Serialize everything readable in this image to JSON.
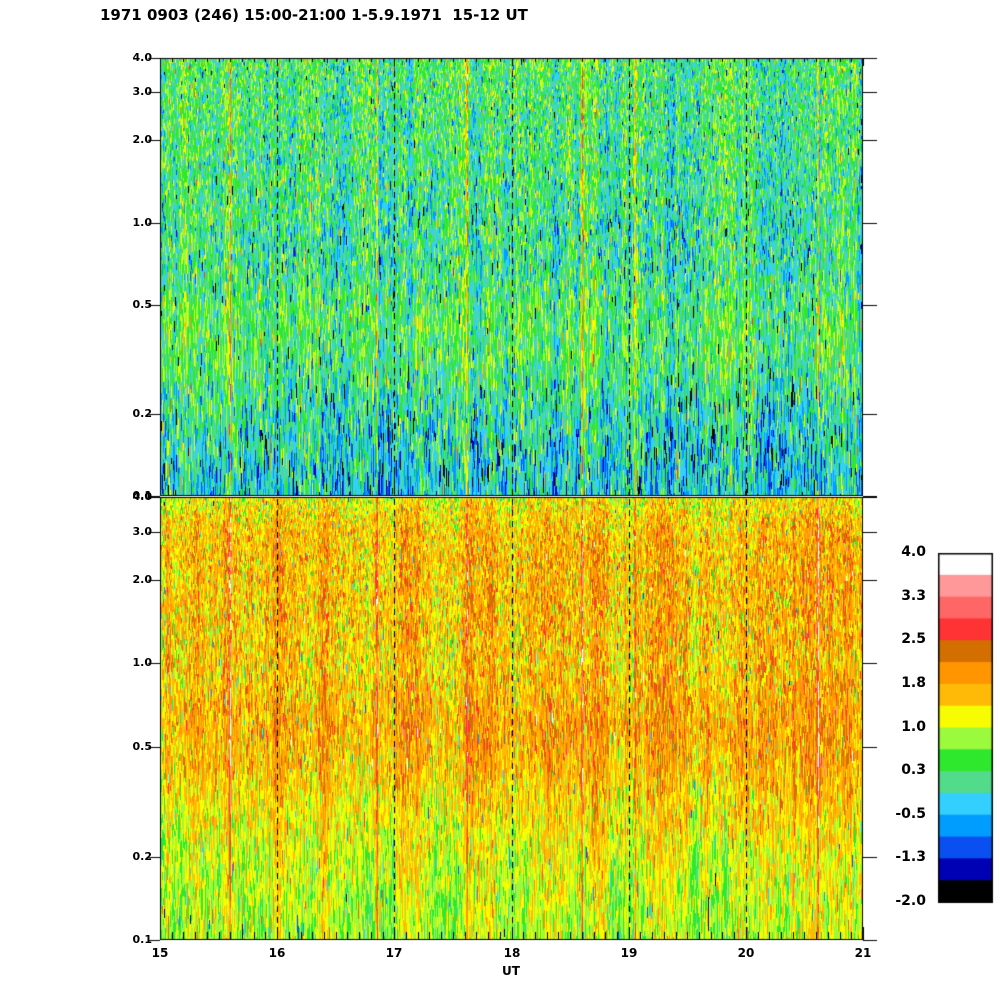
{
  "title": "1971 0903 (246) 15:00-21:00 1-5.9.1971  15-12 UT",
  "x_axis": {
    "label": "UT",
    "tick_labels": [
      "15",
      "16",
      "17",
      "18",
      "19",
      "20",
      "21"
    ]
  },
  "chart_data": {
    "type": "heatmap",
    "title": "1971 0903 (246) 15:00-21:00 1-5.9.1971  15-12 UT",
    "xlabel": "UT",
    "x_range_ut_hours": [
      15,
      21
    ],
    "x_major_ticks": [
      15,
      16,
      17,
      18,
      19,
      20,
      21
    ],
    "x_minor_tick_step_hours": 0.1,
    "dashed_gridlines_ut": [
      16,
      17,
      18,
      19,
      20
    ],
    "y_scale": "log",
    "y_range": [
      0.1,
      4.0
    ],
    "y_ticks": [
      {
        "value": 4.0,
        "label": "4.0"
      },
      {
        "value": 3.0,
        "label": "3.0"
      },
      {
        "value": 2.0,
        "label": "2.0"
      },
      {
        "value": 1.0,
        "label": "1.0"
      },
      {
        "value": 0.5,
        "label": "0.5"
      },
      {
        "value": 0.2,
        "label": "0.2"
      },
      {
        "value": 0.1,
        "label": "0.1"
      }
    ],
    "colorbar": {
      "min": -2.0,
      "max": 4.0,
      "labels": [
        "4.0",
        "3.3",
        "2.5",
        "1.8",
        "1.0",
        "0.3",
        "-0.5",
        "-1.3",
        "-2.0"
      ],
      "band_colors_top_to_bottom": [
        "#FFFFFF",
        "#FF9999",
        "#FF6666",
        "#FF3333",
        "#D26F00",
        "#FF9500",
        "#FFBA08",
        "#F8FC00",
        "#9BFA3C",
        "#2EE82E",
        "#52DB8A",
        "#33CFFF",
        "#009DFF",
        "#0A50F0",
        "#0000B4",
        "#000000"
      ]
    },
    "panels": [
      {
        "name": "upper-spectrogram",
        "description": "Green/cyan dominated dynamic spectrum; green band near 0.3-0.5, cyan and dark-blue streaks below 0.2",
        "profile_freq_mean_sigma": [
          [
            4.0,
            0.28,
            0.45
          ],
          [
            2.5,
            0.22,
            0.45
          ],
          [
            1.2,
            0.12,
            0.48
          ],
          [
            0.7,
            0.08,
            0.5
          ],
          [
            0.45,
            0.32,
            0.42
          ],
          [
            0.3,
            0.28,
            0.45
          ],
          [
            0.22,
            0.02,
            0.5
          ],
          [
            0.15,
            -0.18,
            0.55
          ],
          [
            0.1,
            -0.28,
            0.55
          ]
        ],
        "low_outlier_boost": 0.035
      },
      {
        "name": "lower-spectrogram",
        "description": "Orange/yellow dominated dynamic spectrum; yellow speckle at top edge, orange band near 0.5, yellow-green toward 0.1",
        "profile_freq_mean_sigma": [
          [
            4.0,
            1.1,
            0.38
          ],
          [
            3.5,
            1.35,
            0.42
          ],
          [
            2.8,
            1.6,
            0.42
          ],
          [
            1.8,
            1.6,
            0.45
          ],
          [
            1.0,
            1.5,
            0.48
          ],
          [
            0.6,
            1.75,
            0.4
          ],
          [
            0.45,
            1.65,
            0.4
          ],
          [
            0.3,
            1.3,
            0.38
          ],
          [
            0.2,
            1.05,
            0.35
          ],
          [
            0.13,
            0.9,
            0.32
          ],
          [
            0.1,
            0.85,
            0.32
          ]
        ],
        "low_outlier_boost": 0.0
      }
    ],
    "event_streaks_ut": [
      {
        "ut": 15.6,
        "offset": 1.7
      },
      {
        "ut": 16.85,
        "offset": 1.3
      },
      {
        "ut": 17.62,
        "offset": 1.2
      },
      {
        "ut": 18.6,
        "offset": 1.6
      },
      {
        "ut": 19.05,
        "offset": 0.9
      },
      {
        "ut": 20.62,
        "offset": 1.6
      }
    ],
    "noise_seed": 1971
  }
}
